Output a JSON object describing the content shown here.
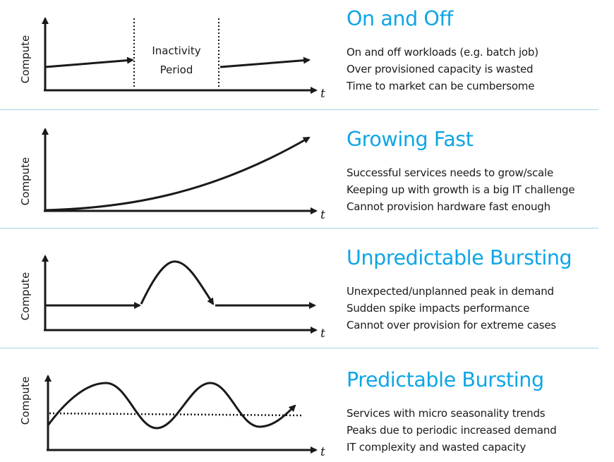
{
  "colors": {
    "accent": "#0ea5e6",
    "ink": "#1a1a1a",
    "divider": "#a7d3e3"
  },
  "icons": {
    "arrowhead": "arrowhead-icon"
  },
  "axis": {
    "y_label": "Compute",
    "x_label": "t"
  },
  "panels": [
    {
      "title": "On and Off",
      "inactivity_label": [
        "Inactivity",
        "Period"
      ],
      "bullets": [
        "On and off workloads (e.g. batch job)",
        "Over provisioned capacity is wasted",
        "Time to market can be cumbersome"
      ]
    },
    {
      "title": "Growing Fast",
      "bullets": [
        "Successful services needs to grow/scale",
        "Keeping up with growth is a big IT challenge",
        "Cannot provision hardware fast enough"
      ]
    },
    {
      "title": "Unpredictable Bursting",
      "bullets": [
        "Unexpected/unplanned peak in demand",
        "Sudden spike impacts performance",
        "Cannot over provision for extreme cases"
      ]
    },
    {
      "title": "Predictable Bursting",
      "bullets": [
        "Services with micro seasonality trends",
        "Peaks due to periodic increased demand",
        "IT complexity and wasted capacity"
      ]
    }
  ]
}
